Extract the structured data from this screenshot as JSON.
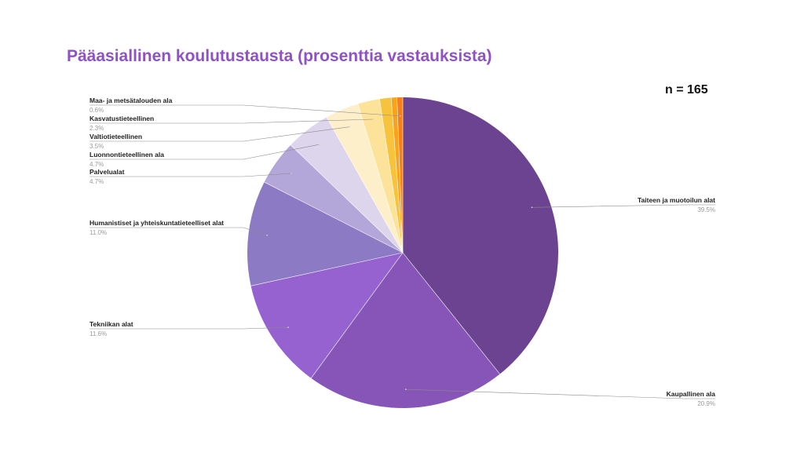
{
  "title": "Pääasiallinen koulutustausta (prosenttia vastauksista)",
  "n_label": "n = 165",
  "chart_data": {
    "type": "pie",
    "title": "Pääasiallinen koulutustausta (prosenttia vastauksista)",
    "slices": [
      {
        "label": "Taiteen ja muotoilun alat",
        "value": 39.5,
        "pct": "39.5%",
        "color": "#6b4391"
      },
      {
        "label": "Kaupallinen ala",
        "value": 20.9,
        "pct": "20.9%",
        "color": "#8755b8"
      },
      {
        "label": "Tekniikan alat",
        "value": 11.6,
        "pct": "11.6%",
        "color": "#9662d0"
      },
      {
        "label": "Humanistiset ja yhteiskuntatieteelliset alat",
        "value": 11.0,
        "pct": "11.0%",
        "color": "#8c7bc4"
      },
      {
        "label": "Palvelualat",
        "value": 4.7,
        "pct": "4.7%",
        "color": "#b3a6d8"
      },
      {
        "label": "Luonnontieteellinen ala",
        "value": 4.7,
        "pct": "4.7%",
        "color": "#dcd5ec"
      },
      {
        "label": "Valtiotieteellinen",
        "value": 3.5,
        "pct": "3.5%",
        "color": "#fdefca"
      },
      {
        "label": "Kasvatustieteellinen",
        "value": 2.3,
        "pct": "2.3%",
        "color": "#fde29a"
      },
      {
        "label": "",
        "value": 1.2,
        "pct": "",
        "color": "#f8c33c"
      },
      {
        "label": "",
        "value": 0.6,
        "pct": "",
        "color": "#f8a31c"
      },
      {
        "label": "Maa- ja metsätalouden ala",
        "value": 0.6,
        "pct": "0.6%",
        "color": "#f77f15"
      }
    ]
  }
}
